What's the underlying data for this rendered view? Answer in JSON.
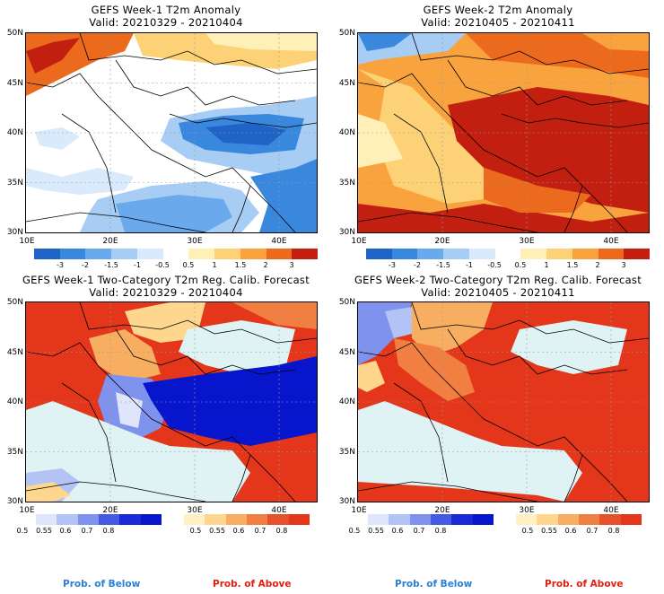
{
  "panels": [
    {
      "title": "GEFS Week-1 T2m Anomaly",
      "valid": "Valid: 20210329 - 20210404"
    },
    {
      "title": "GEFS Week-2 T2m Anomaly",
      "valid": "Valid: 20210405 - 20210411"
    },
    {
      "title": "GEFS Week-1 Two-Category T2m Reg. Calib. Forecast",
      "valid": "Valid: 20210329 - 20210404"
    },
    {
      "title": "GEFS Week-2 Two-Category T2m Reg. Calib. Forecast",
      "valid": "Valid: 20210405 - 20210411"
    }
  ],
  "axes": {
    "lat_labels": [
      "50N",
      "45N",
      "40N",
      "35N",
      "30N"
    ],
    "lon_labels": [
      "10E",
      "20E",
      "30E",
      "40E"
    ],
    "lat_labels_bottom": [
      "50N",
      "45N",
      "40N",
      "35N",
      "30N"
    ],
    "lon_labels_bottom": [
      "10E",
      "20E",
      "30E",
      "40E"
    ]
  },
  "anomaly_colorbar": {
    "labels": [
      "-3",
      "-2",
      "-1.5",
      "-1",
      "-0.5",
      "0.5",
      "1",
      "1.5",
      "2",
      "3"
    ],
    "colors": [
      "#1f63c7",
      "#3a87de",
      "#6aa9ec",
      "#a7cdf4",
      "#d8eafb",
      "#ffffff",
      "#fff0b8",
      "#fdd277",
      "#f8a33e",
      "#ec6a1e",
      "#c21f10"
    ]
  },
  "prob_below_colorbar": {
    "labels": [
      "0.5",
      "0.55",
      "0.6",
      "0.7",
      "0.8"
    ],
    "colors": [
      "#dfe6fb",
      "#b4c3f6",
      "#7f93ee",
      "#4559e4",
      "#1a29d6",
      "#0716cc"
    ]
  },
  "prob_above_colorbar": {
    "labels": [
      "0.5",
      "0.55",
      "0.6",
      "0.7",
      "0.8"
    ],
    "colors": [
      "#fff1c4",
      "#fed68e",
      "#f8ae60",
      "#f27f42",
      "#e8502a",
      "#e3361b"
    ]
  },
  "footer": {
    "prob_below_1": "Prob. of Below",
    "prob_above_1": "Prob. of Above",
    "prob_below_2": "Prob. of Below",
    "prob_above_2": "Prob. of Above",
    "below_color": "#2a7fd8",
    "above_color": "#e02010"
  }
}
